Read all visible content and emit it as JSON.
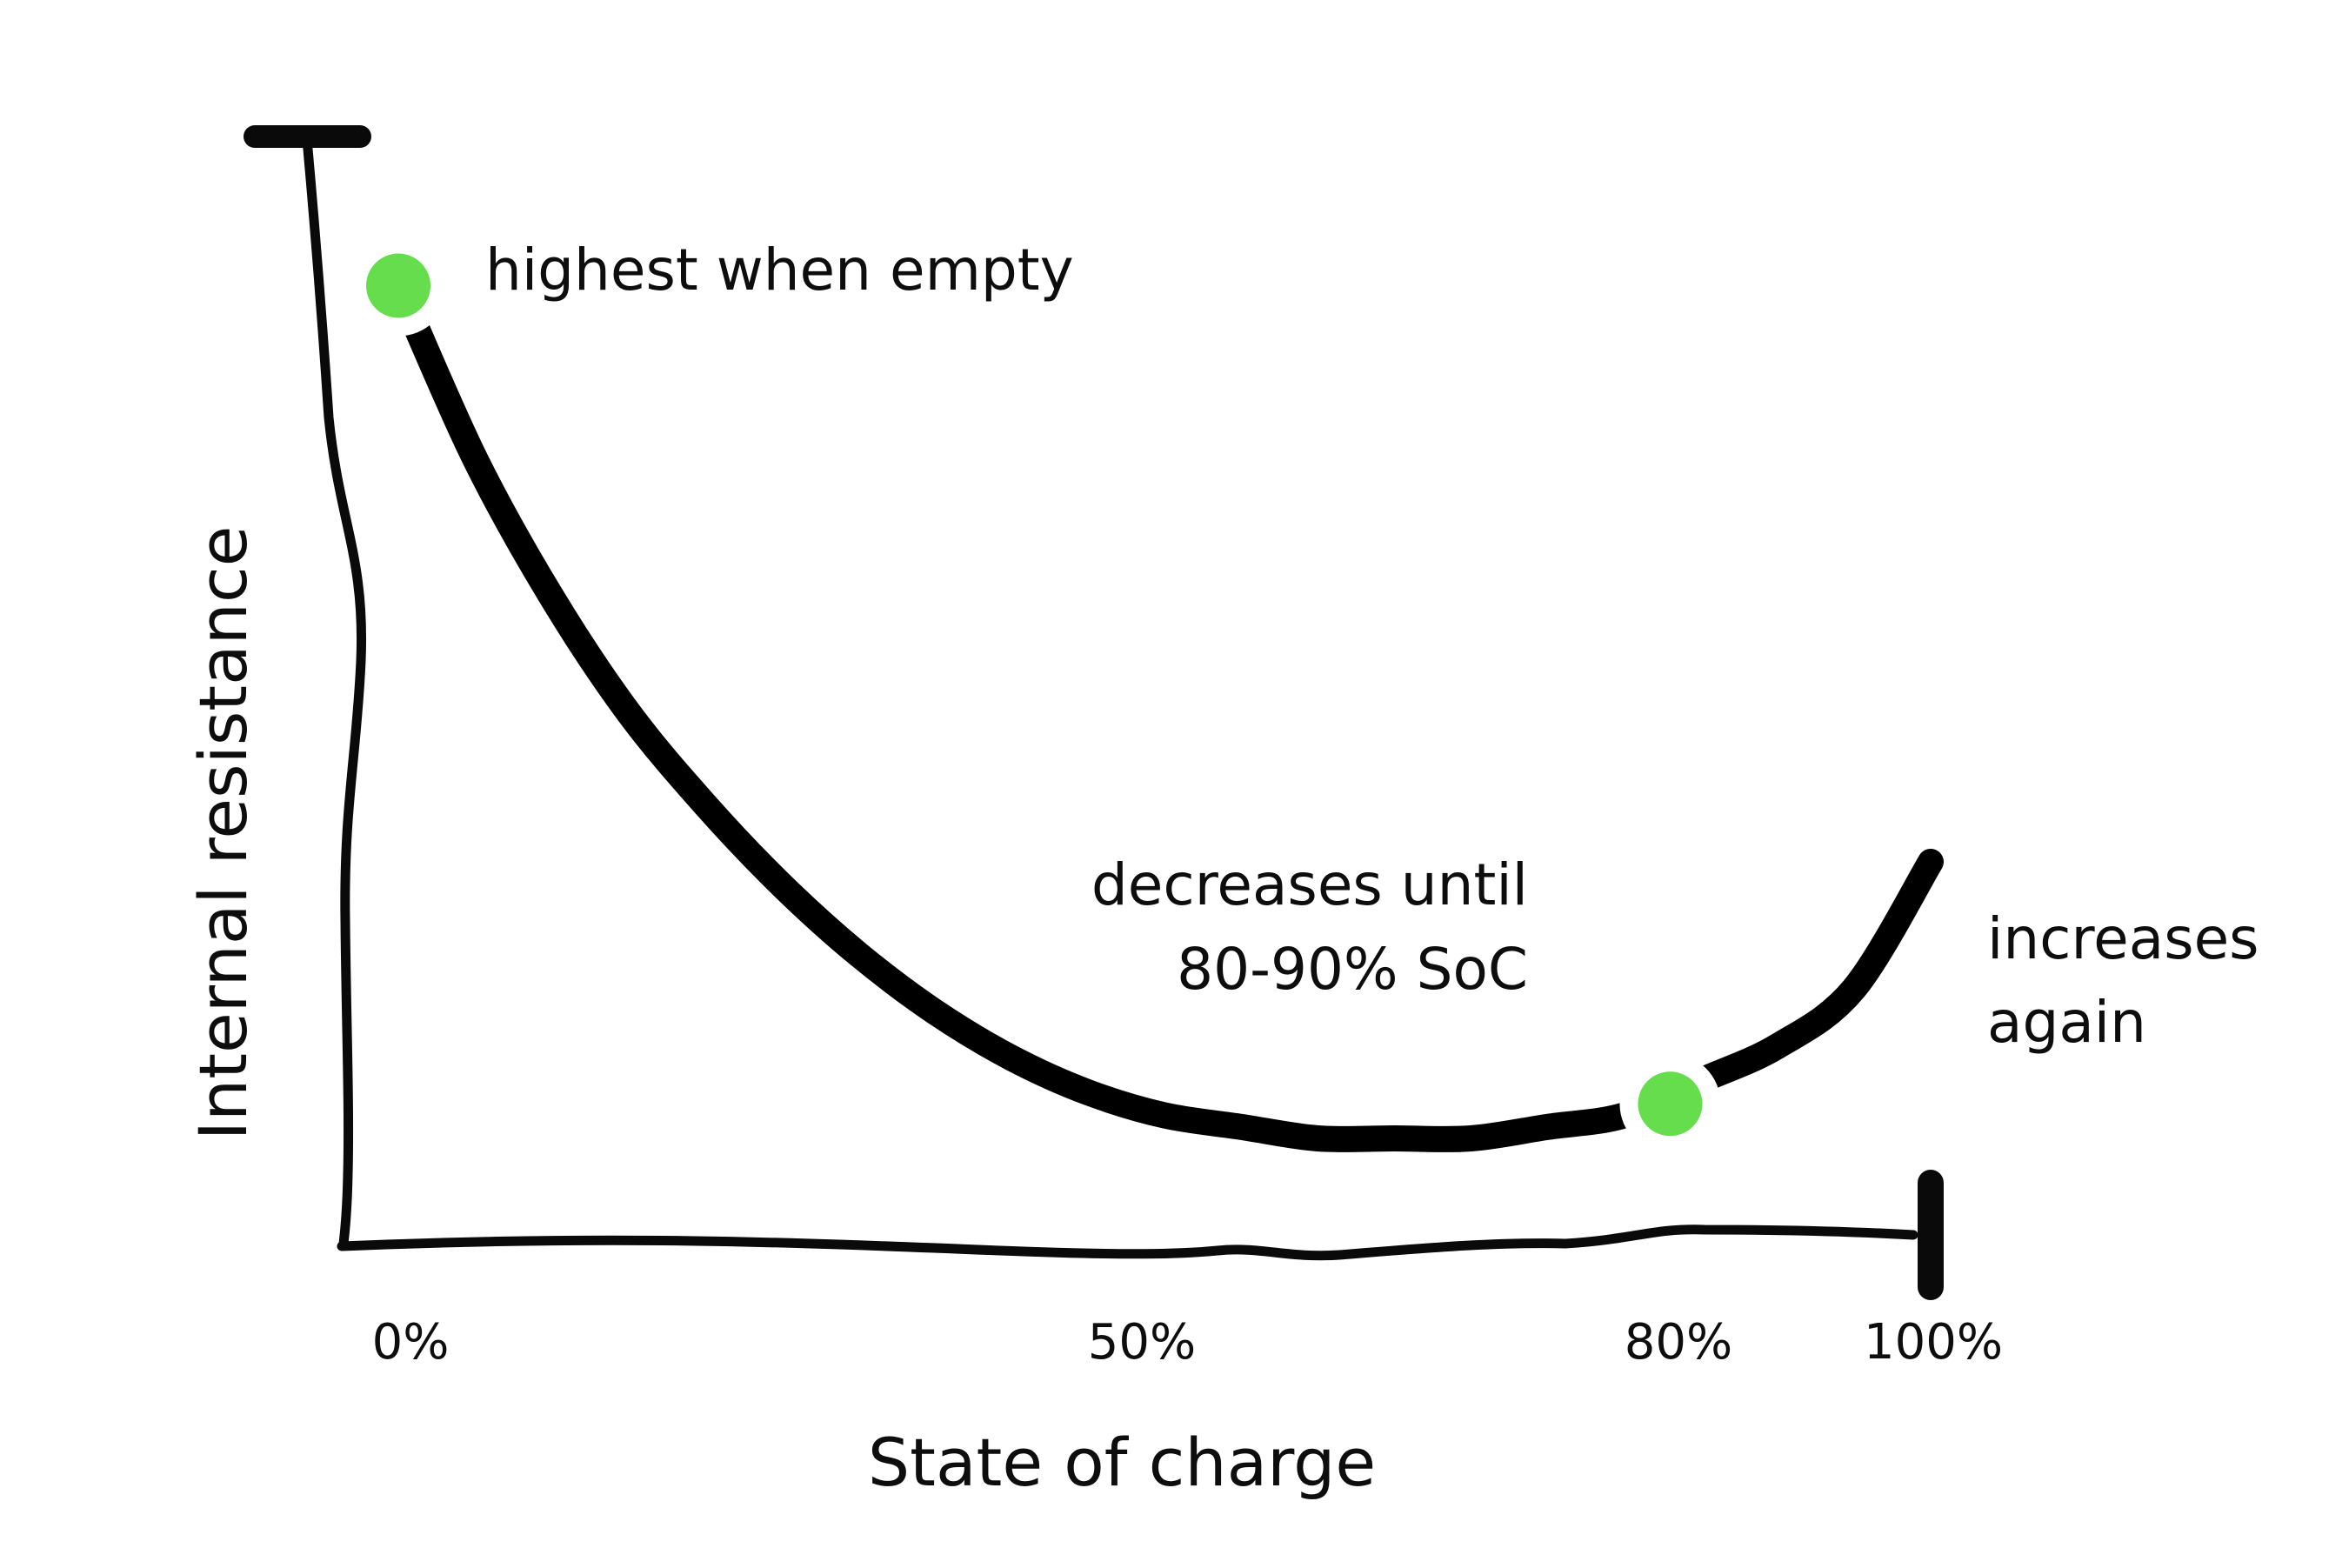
{
  "chart_data": {
    "type": "line",
    "title": "",
    "xlabel": "State of charge",
    "ylabel": "Internal resistance",
    "x_ticks": [
      "0%",
      "50%",
      "80%",
      "100%"
    ],
    "xlim": [
      0,
      100
    ],
    "y_ticks": [],
    "grid": false,
    "legend": "none",
    "series": [
      {
        "x": [
          0,
          5,
          10,
          15,
          20,
          25,
          30,
          35,
          40,
          45,
          50,
          55,
          60,
          65,
          70,
          75,
          80,
          85,
          90,
          95,
          100
        ],
        "y": [
          0.82,
          0.67,
          0.55,
          0.45,
          0.37,
          0.3,
          0.24,
          0.19,
          0.15,
          0.12,
          0.1,
          0.09,
          0.08,
          0.08,
          0.08,
          0.09,
          0.1,
          0.13,
          0.16,
          0.21,
          0.32
        ],
        "color": "#000000"
      }
    ],
    "highlight_points": [
      {
        "x": 0,
        "y": 0.82,
        "color": "#66dd4d"
      },
      {
        "x": 83,
        "y": 0.11,
        "color": "#66dd4d"
      }
    ],
    "annotations": [
      {
        "lines": [
          "highest when empty"
        ]
      },
      {
        "lines": [
          "decreases until",
          "80-90% SoC"
        ]
      },
      {
        "lines": [
          "increases",
          "again"
        ]
      }
    ]
  }
}
